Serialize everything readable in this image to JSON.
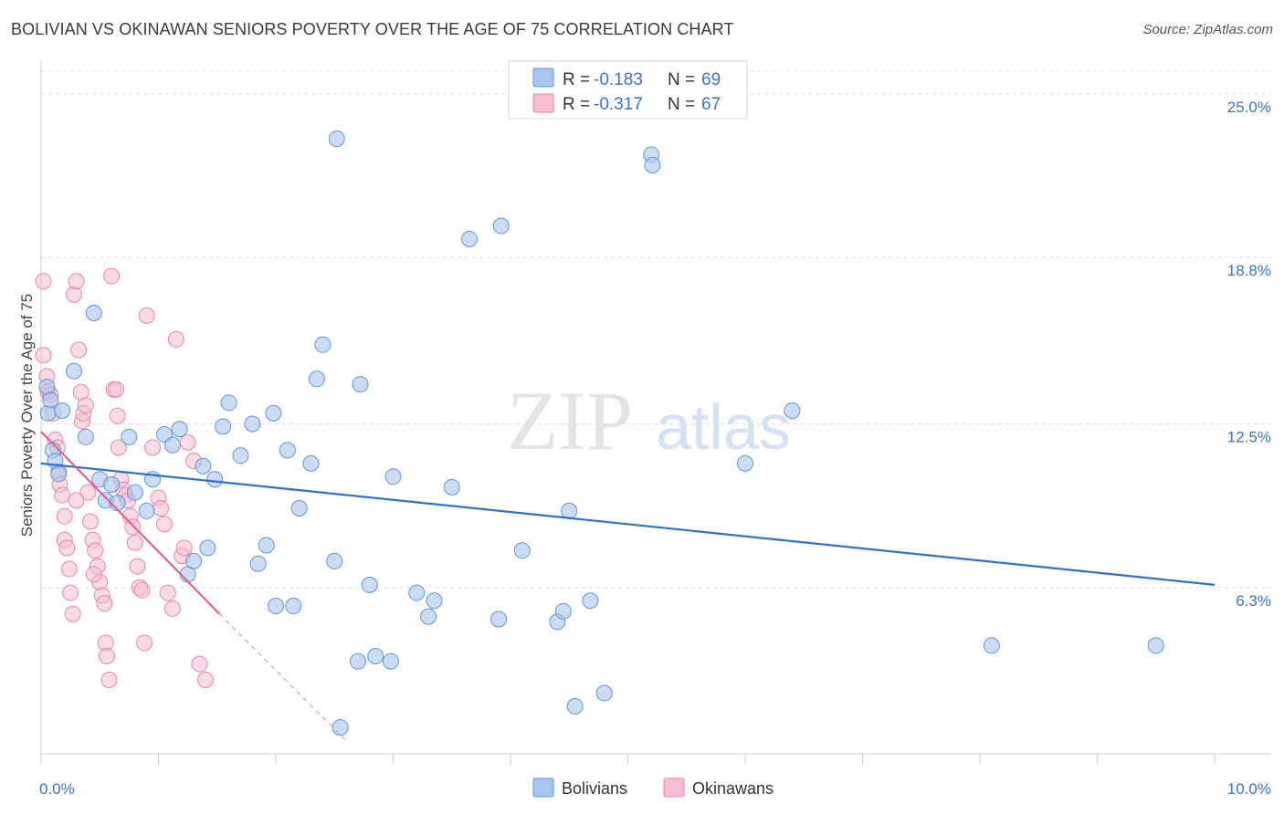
{
  "title": "BOLIVIAN VS OKINAWAN SENIORS POVERTY OVER THE AGE OF 75 CORRELATION CHART",
  "source": "Source: ZipAtlas.com",
  "watermark": {
    "zip": "ZIP",
    "atlas": "atlas"
  },
  "legend": {
    "r_label": "R =",
    "n_label": "N =",
    "rows": [
      {
        "series": "Bolivians",
        "r": "-0.183",
        "n": "69"
      },
      {
        "series": "Okinawans",
        "r": "-0.317",
        "n": "67"
      }
    ]
  },
  "colors": {
    "bolivians_fill": "#a9c6ef",
    "bolivians_stroke": "#5f95dc",
    "bolivians_line": "#2e6fd0",
    "okinawans_fill": "#f6bed0",
    "okinawans_stroke": "#e886a8",
    "okinawans_line": "#e0628f",
    "grid": "#dcdcdc",
    "axis_text": "#3a74c9"
  },
  "chart_data": {
    "type": "scatter",
    "title": "BOLIVIAN VS OKINAWAN SENIORS POVERTY OVER THE AGE OF 75 CORRELATION CHART",
    "xlabel": "",
    "ylabel": "Seniors Poverty Over the Age of 75",
    "xlim": [
      0,
      10
    ],
    "ylim": [
      0,
      26
    ],
    "x_tick_labels": [
      "0.0%",
      "10.0%"
    ],
    "y_ticks": [
      6.3,
      12.5,
      18.8,
      25.0
    ],
    "y_tick_labels": [
      "6.3%",
      "12.5%",
      "18.8%",
      "25.0%"
    ],
    "series": [
      {
        "name": "Bolivians",
        "trend": {
          "x": [
            0.0,
            10.0
          ],
          "y": [
            11.0,
            6.4
          ]
        },
        "points": [
          [
            0.05,
            13.9
          ],
          [
            0.06,
            12.9
          ],
          [
            0.1,
            11.5
          ],
          [
            0.12,
            11.1
          ],
          [
            0.18,
            13.0
          ],
          [
            0.28,
            14.5
          ],
          [
            0.38,
            12.0
          ],
          [
            0.45,
            16.7
          ],
          [
            0.5,
            10.4
          ],
          [
            0.55,
            9.6
          ],
          [
            0.6,
            10.2
          ],
          [
            0.65,
            9.5
          ],
          [
            0.75,
            12.0
          ],
          [
            0.8,
            9.9
          ],
          [
            0.9,
            9.2
          ],
          [
            0.95,
            10.4
          ],
          [
            1.05,
            12.1
          ],
          [
            1.12,
            11.7
          ],
          [
            1.18,
            12.3
          ],
          [
            1.25,
            6.8
          ],
          [
            1.3,
            7.3
          ],
          [
            1.38,
            10.9
          ],
          [
            1.42,
            7.8
          ],
          [
            1.48,
            10.4
          ],
          [
            1.55,
            12.4
          ],
          [
            1.6,
            13.3
          ],
          [
            1.7,
            11.3
          ],
          [
            1.8,
            12.5
          ],
          [
            1.85,
            7.2
          ],
          [
            1.92,
            7.9
          ],
          [
            1.98,
            12.9
          ],
          [
            2.0,
            5.6
          ],
          [
            2.1,
            11.5
          ],
          [
            2.15,
            5.6
          ],
          [
            2.2,
            9.3
          ],
          [
            2.3,
            11.0
          ],
          [
            2.35,
            14.2
          ],
          [
            2.4,
            15.5
          ],
          [
            2.5,
            7.3
          ],
          [
            2.52,
            23.3
          ],
          [
            2.55,
            1.0
          ],
          [
            2.7,
            3.5
          ],
          [
            2.72,
            14.0
          ],
          [
            2.8,
            6.4
          ],
          [
            2.85,
            3.7
          ],
          [
            2.98,
            3.5
          ],
          [
            3.0,
            10.5
          ],
          [
            3.2,
            6.1
          ],
          [
            3.3,
            5.2
          ],
          [
            3.35,
            5.8
          ],
          [
            3.5,
            10.1
          ],
          [
            3.65,
            19.5
          ],
          [
            3.9,
            5.1
          ],
          [
            3.92,
            20.0
          ],
          [
            4.1,
            7.7
          ],
          [
            4.4,
            5.0
          ],
          [
            4.45,
            5.4
          ],
          [
            4.5,
            9.2
          ],
          [
            4.55,
            1.8
          ],
          [
            4.68,
            5.8
          ],
          [
            4.8,
            2.3
          ],
          [
            5.2,
            22.7
          ],
          [
            5.21,
            22.3
          ],
          [
            6.0,
            11.0
          ],
          [
            6.4,
            13.0
          ],
          [
            8.1,
            4.1
          ],
          [
            9.5,
            4.1
          ],
          [
            0.08,
            13.4
          ],
          [
            0.15,
            10.6
          ]
        ]
      },
      {
        "name": "Okinawans",
        "trend": {
          "x": [
            0.0,
            1.52
          ],
          "y": [
            12.2,
            5.3
          ]
        },
        "trend_dashed": {
          "x": [
            1.52,
            2.6
          ],
          "y": [
            5.3,
            0.5
          ]
        },
        "points": [
          [
            0.02,
            17.9
          ],
          [
            0.02,
            15.1
          ],
          [
            0.05,
            14.3
          ],
          [
            0.06,
            13.7
          ],
          [
            0.08,
            13.6
          ],
          [
            0.1,
            12.9
          ],
          [
            0.12,
            11.9
          ],
          [
            0.14,
            11.6
          ],
          [
            0.15,
            10.7
          ],
          [
            0.16,
            10.2
          ],
          [
            0.18,
            9.8
          ],
          [
            0.2,
            9.0
          ],
          [
            0.2,
            8.1
          ],
          [
            0.22,
            7.8
          ],
          [
            0.24,
            7.0
          ],
          [
            0.25,
            6.1
          ],
          [
            0.27,
            5.3
          ],
          [
            0.28,
            17.4
          ],
          [
            0.3,
            17.9
          ],
          [
            0.32,
            15.3
          ],
          [
            0.34,
            13.7
          ],
          [
            0.35,
            12.6
          ],
          [
            0.36,
            12.9
          ],
          [
            0.38,
            13.2
          ],
          [
            0.4,
            9.9
          ],
          [
            0.42,
            8.8
          ],
          [
            0.44,
            8.1
          ],
          [
            0.46,
            7.7
          ],
          [
            0.48,
            7.1
          ],
          [
            0.5,
            6.5
          ],
          [
            0.52,
            6.0
          ],
          [
            0.54,
            5.7
          ],
          [
            0.55,
            4.2
          ],
          [
            0.56,
            3.7
          ],
          [
            0.58,
            2.8
          ],
          [
            0.6,
            18.1
          ],
          [
            0.62,
            13.8
          ],
          [
            0.64,
            13.8
          ],
          [
            0.65,
            12.8
          ],
          [
            0.66,
            11.6
          ],
          [
            0.68,
            10.4
          ],
          [
            0.7,
            10.0
          ],
          [
            0.72,
            9.8
          ],
          [
            0.74,
            9.6
          ],
          [
            0.76,
            9.0
          ],
          [
            0.78,
            8.6
          ],
          [
            0.8,
            8.0
          ],
          [
            0.82,
            7.1
          ],
          [
            0.84,
            6.3
          ],
          [
            0.86,
            6.2
          ],
          [
            0.88,
            4.2
          ],
          [
            0.9,
            16.6
          ],
          [
            0.95,
            11.6
          ],
          [
            1.0,
            9.7
          ],
          [
            1.02,
            9.3
          ],
          [
            1.05,
            8.7
          ],
          [
            1.08,
            6.1
          ],
          [
            1.12,
            5.5
          ],
          [
            1.15,
            15.7
          ],
          [
            1.2,
            7.5
          ],
          [
            1.22,
            7.8
          ],
          [
            1.25,
            11.8
          ],
          [
            1.3,
            11.1
          ],
          [
            1.35,
            3.4
          ],
          [
            1.4,
            2.8
          ],
          [
            0.3,
            9.6
          ],
          [
            0.45,
            6.8
          ]
        ]
      }
    ]
  },
  "bottom_legend": [
    "Bolivians",
    "Okinawans"
  ]
}
